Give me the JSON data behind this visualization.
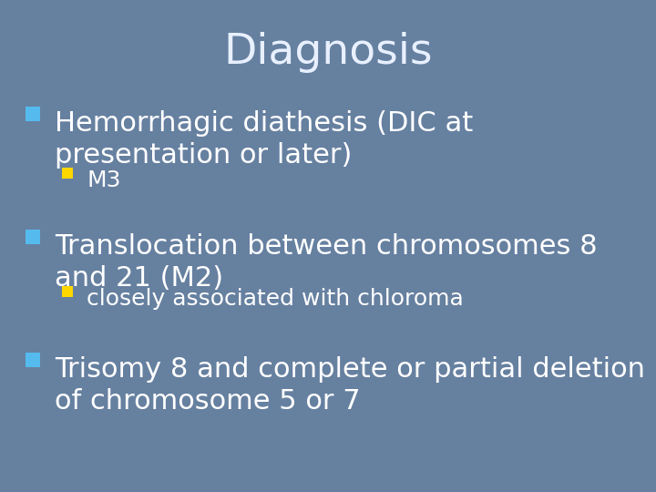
{
  "title": "Diagnosis",
  "title_color": "#E8F0FF",
  "title_fontsize": 34,
  "background_color": "#6680A0",
  "text_color": "#FFFFFF",
  "items": [
    {
      "level": 1,
      "text": "Hemorrhagic diathesis (DIC at\npresentation or later)",
      "fontsize": 22,
      "bullet_color": "#55BBEE"
    },
    {
      "level": 2,
      "text": "M3",
      "fontsize": 18,
      "bullet_color": "#FFD700"
    },
    {
      "level": 1,
      "text": "Translocation between chromosomes 8\nand 21 (M2)",
      "fontsize": 22,
      "bullet_color": "#55BBEE"
    },
    {
      "level": 2,
      "text": "closely associated with chloroma",
      "fontsize": 18,
      "bullet_color": "#FFD700"
    },
    {
      "level": 1,
      "text": "Trisomy 8 and complete or partial deletion\nof chromosome 5 or 7",
      "fontsize": 22,
      "bullet_color": "#55BBEE"
    }
  ],
  "figwidth": 7.2,
  "figheight": 5.4,
  "dpi": 100
}
